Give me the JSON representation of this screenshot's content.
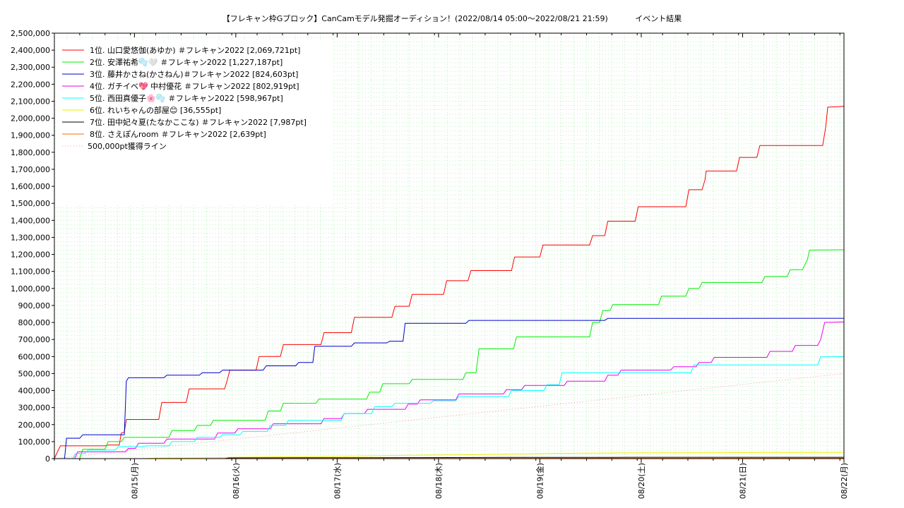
{
  "chart_data": {
    "type": "line",
    "title": "【フレキャン枠Gブロック】CanCamモデル発掘オーディション！(2022/08/14 05:00〜2022/08/21 21:59)           イベント結果",
    "xlabel": "",
    "ylabel": "",
    "ylim": [
      0,
      2500000
    ],
    "grid": true,
    "legend_placement": "top-left",
    "y_ticks": [
      0,
      100000,
      200000,
      300000,
      400000,
      500000,
      600000,
      700000,
      800000,
      900000,
      1000000,
      1100000,
      1200000,
      1300000,
      1400000,
      1500000,
      1600000,
      1700000,
      1800000,
      1900000,
      2000000,
      2100000,
      2200000,
      2300000,
      2400000,
      2500000
    ],
    "y_tick_labels": [
      "0",
      "100,000",
      "200,000",
      "300,000",
      "400,000",
      "500,000",
      "600,000",
      "700,000",
      "800,000",
      "900,000",
      "1,000,000",
      "1,100,000",
      "1,200,000",
      "1,300,000",
      "1,400,000",
      "1,500,000",
      "1,600,000",
      "1,700,000",
      "1,800,000",
      "1,900,000",
      "2,000,000",
      "2,100,000",
      "2,200,000",
      "2,300,000",
      "2,400,000",
      "2,500,000"
    ],
    "x_ticks": [
      0.79,
      1.79,
      2.79,
      3.79,
      4.79,
      5.79,
      6.79,
      7.79
    ],
    "x_tick_labels": [
      "08/15(月)",
      "08/16(火)",
      "08/17(水)",
      "08/18(木)",
      "08/19(金)",
      "08/20(土)",
      "08/21(日)",
      "08/22(月)"
    ],
    "x_range": [
      0,
      7.79
    ],
    "series": [
      {
        "name": "1位. 山口愛悠伽(あゆか) ＃フレキャン2022 [2,069,721pt]",
        "color": "#ff0000",
        "points": [
          [
            0,
            0
          ],
          [
            0.03,
            40000
          ],
          [
            0.06,
            75000
          ],
          [
            0.5,
            75000
          ],
          [
            0.53,
            80000
          ],
          [
            0.64,
            80000
          ],
          [
            0.66,
            150000
          ],
          [
            0.69,
            155000
          ],
          [
            0.71,
            230000
          ],
          [
            1.03,
            230000
          ],
          [
            1.06,
            330000
          ],
          [
            1.3,
            330000
          ],
          [
            1.33,
            410000
          ],
          [
            1.68,
            410000
          ],
          [
            1.71,
            470000
          ],
          [
            1.73,
            520000
          ],
          [
            1.99,
            520000
          ],
          [
            2.02,
            600000
          ],
          [
            2.23,
            600000
          ],
          [
            2.26,
            670000
          ],
          [
            2.63,
            670000
          ],
          [
            2.66,
            740000
          ],
          [
            2.93,
            740000
          ],
          [
            2.96,
            830000
          ],
          [
            3.33,
            830000
          ],
          [
            3.36,
            895000
          ],
          [
            3.5,
            895000
          ],
          [
            3.53,
            965000
          ],
          [
            3.84,
            965000
          ],
          [
            3.87,
            1045000
          ],
          [
            4.08,
            1045000
          ],
          [
            4.11,
            1105000
          ],
          [
            4.51,
            1105000
          ],
          [
            4.54,
            1185000
          ],
          [
            4.79,
            1185000
          ],
          [
            4.82,
            1255000
          ],
          [
            5.28,
            1255000
          ],
          [
            5.31,
            1310000
          ],
          [
            5.43,
            1310000
          ],
          [
            5.46,
            1395000
          ],
          [
            5.73,
            1395000
          ],
          [
            5.76,
            1480000
          ],
          [
            6.23,
            1480000
          ],
          [
            6.26,
            1580000
          ],
          [
            6.39,
            1580000
          ],
          [
            6.42,
            1640000
          ],
          [
            6.43,
            1690000
          ],
          [
            6.73,
            1690000
          ],
          [
            6.76,
            1770000
          ],
          [
            6.93,
            1770000
          ],
          [
            6.96,
            1840000
          ],
          [
            7.58,
            1840000
          ],
          [
            7.61,
            1950000
          ],
          [
            7.63,
            2065000
          ],
          [
            7.79,
            2069721
          ]
        ]
      },
      {
        "name": "2位. 安澤祐希🫧🤍 ＃フレキャン2022 [1,227,187pt]",
        "color": "#00ee00",
        "points": [
          [
            0.25,
            0
          ],
          [
            0.28,
            55000
          ],
          [
            0.5,
            55000
          ],
          [
            0.53,
            100000
          ],
          [
            0.66,
            100000
          ],
          [
            0.69,
            125000
          ],
          [
            1.13,
            125000
          ],
          [
            1.16,
            165000
          ],
          [
            1.38,
            165000
          ],
          [
            1.41,
            195000
          ],
          [
            1.54,
            195000
          ],
          [
            1.57,
            225000
          ],
          [
            2.08,
            225000
          ],
          [
            2.11,
            280000
          ],
          [
            2.23,
            280000
          ],
          [
            2.26,
            325000
          ],
          [
            2.58,
            325000
          ],
          [
            2.61,
            350000
          ],
          [
            3.08,
            350000
          ],
          [
            3.11,
            390000
          ],
          [
            3.21,
            390000
          ],
          [
            3.24,
            440000
          ],
          [
            3.5,
            440000
          ],
          [
            3.53,
            465000
          ],
          [
            4.03,
            465000
          ],
          [
            4.06,
            505000
          ],
          [
            4.16,
            505000
          ],
          [
            4.19,
            645000
          ],
          [
            4.53,
            645000
          ],
          [
            4.56,
            715000
          ],
          [
            5.28,
            715000
          ],
          [
            5.31,
            800000
          ],
          [
            5.38,
            800000
          ],
          [
            5.41,
            870000
          ],
          [
            5.48,
            870000
          ],
          [
            5.51,
            905000
          ],
          [
            5.96,
            905000
          ],
          [
            5.99,
            955000
          ],
          [
            6.23,
            955000
          ],
          [
            6.26,
            1000000
          ],
          [
            6.36,
            1000000
          ],
          [
            6.39,
            1035000
          ],
          [
            6.98,
            1035000
          ],
          [
            7.01,
            1070000
          ],
          [
            7.23,
            1070000
          ],
          [
            7.26,
            1110000
          ],
          [
            7.38,
            1110000
          ],
          [
            7.43,
            1170000
          ],
          [
            7.45,
            1225000
          ],
          [
            7.79,
            1227187
          ]
        ]
      },
      {
        "name": "3位. 藤井かさね(かさねん)＃フレキャン2022 [824,603pt]",
        "color": "#0000cc",
        "points": [
          [
            0.1,
            0
          ],
          [
            0.12,
            120000
          ],
          [
            0.25,
            120000
          ],
          [
            0.28,
            140000
          ],
          [
            0.69,
            140000
          ],
          [
            0.71,
            455000
          ],
          [
            0.73,
            475000
          ],
          [
            1.08,
            475000
          ],
          [
            1.11,
            490000
          ],
          [
            1.43,
            490000
          ],
          [
            1.46,
            505000
          ],
          [
            1.63,
            505000
          ],
          [
            1.66,
            520000
          ],
          [
            2.06,
            520000
          ],
          [
            2.09,
            545000
          ],
          [
            2.38,
            545000
          ],
          [
            2.41,
            565000
          ],
          [
            2.55,
            565000
          ],
          [
            2.57,
            660000
          ],
          [
            2.93,
            660000
          ],
          [
            2.96,
            680000
          ],
          [
            3.28,
            680000
          ],
          [
            3.31,
            690000
          ],
          [
            3.44,
            690000
          ],
          [
            3.46,
            795000
          ],
          [
            4.06,
            795000
          ],
          [
            4.09,
            812000
          ],
          [
            5.43,
            812000
          ],
          [
            5.46,
            824000
          ],
          [
            7.79,
            824603
          ]
        ]
      },
      {
        "name": "4位. ガチイベ💖 中村優花 ＃フレキャン2022 [802,919pt]",
        "color": "#ee00ee",
        "points": [
          [
            0.2,
            0
          ],
          [
            0.23,
            40000
          ],
          [
            0.7,
            40000
          ],
          [
            0.73,
            60000
          ],
          [
            0.8,
            60000
          ],
          [
            0.83,
            90000
          ],
          [
            1.08,
            90000
          ],
          [
            1.11,
            115000
          ],
          [
            1.58,
            115000
          ],
          [
            1.61,
            150000
          ],
          [
            1.78,
            150000
          ],
          [
            1.81,
            175000
          ],
          [
            2.13,
            175000
          ],
          [
            2.16,
            205000
          ],
          [
            2.63,
            205000
          ],
          [
            2.66,
            235000
          ],
          [
            2.83,
            235000
          ],
          [
            2.86,
            265000
          ],
          [
            3.06,
            265000
          ],
          [
            3.09,
            290000
          ],
          [
            3.46,
            290000
          ],
          [
            3.49,
            320000
          ],
          [
            3.58,
            320000
          ],
          [
            3.61,
            345000
          ],
          [
            3.96,
            345000
          ],
          [
            3.99,
            380000
          ],
          [
            4.43,
            380000
          ],
          [
            4.46,
            405000
          ],
          [
            4.61,
            405000
          ],
          [
            4.64,
            430000
          ],
          [
            5.03,
            430000
          ],
          [
            5.06,
            455000
          ],
          [
            5.43,
            455000
          ],
          [
            5.46,
            490000
          ],
          [
            5.56,
            490000
          ],
          [
            5.59,
            520000
          ],
          [
            6.08,
            520000
          ],
          [
            6.11,
            540000
          ],
          [
            6.33,
            540000
          ],
          [
            6.36,
            565000
          ],
          [
            6.48,
            565000
          ],
          [
            6.51,
            595000
          ],
          [
            7.03,
            595000
          ],
          [
            7.06,
            630000
          ],
          [
            7.28,
            630000
          ],
          [
            7.31,
            665000
          ],
          [
            7.53,
            665000
          ],
          [
            7.56,
            700000
          ],
          [
            7.6,
            800000
          ],
          [
            7.79,
            802919
          ]
        ]
      },
      {
        "name": "5位. 西田真優子🌸🫧 ＃フレキャン2022 [598,967pt]",
        "color": "#00ffff",
        "points": [
          [
            0.18,
            0
          ],
          [
            0.21,
            30000
          ],
          [
            0.3,
            30000
          ],
          [
            0.33,
            50000
          ],
          [
            0.6,
            50000
          ],
          [
            0.63,
            70000
          ],
          [
            0.88,
            70000
          ],
          [
            0.91,
            75000
          ],
          [
            1.13,
            75000
          ],
          [
            1.16,
            100000
          ],
          [
            1.38,
            100000
          ],
          [
            1.41,
            125000
          ],
          [
            1.63,
            125000
          ],
          [
            1.66,
            140000
          ],
          [
            1.83,
            140000
          ],
          [
            1.86,
            160000
          ],
          [
            2.1,
            160000
          ],
          [
            2.13,
            195000
          ],
          [
            2.28,
            195000
          ],
          [
            2.31,
            225000
          ],
          [
            2.83,
            225000
          ],
          [
            2.86,
            265000
          ],
          [
            3.13,
            265000
          ],
          [
            3.16,
            305000
          ],
          [
            3.33,
            305000
          ],
          [
            3.36,
            325000
          ],
          [
            3.71,
            325000
          ],
          [
            3.74,
            340000
          ],
          [
            3.96,
            340000
          ],
          [
            3.99,
            365000
          ],
          [
            4.48,
            365000
          ],
          [
            4.51,
            400000
          ],
          [
            4.83,
            400000
          ],
          [
            4.86,
            435000
          ],
          [
            4.98,
            435000
          ],
          [
            5.01,
            505000
          ],
          [
            6.28,
            505000
          ],
          [
            6.31,
            550000
          ],
          [
            7.53,
            550000
          ],
          [
            7.56,
            598000
          ],
          [
            7.79,
            598967
          ]
        ]
      },
      {
        "name": "6位. れいちゃんの部屋😊 [36,555pt]",
        "color": "#eeee00",
        "points": [
          [
            0.9,
            0
          ],
          [
            1.0,
            3000
          ],
          [
            1.5,
            5000
          ],
          [
            2.0,
            9000
          ],
          [
            2.5,
            12000
          ],
          [
            3.0,
            15000
          ],
          [
            3.5,
            20000
          ],
          [
            4.0,
            22000
          ],
          [
            4.5,
            27000
          ],
          [
            5.0,
            31000
          ],
          [
            5.5,
            33000
          ],
          [
            6.0,
            34000
          ],
          [
            6.5,
            35000
          ],
          [
            7.0,
            35500
          ],
          [
            7.5,
            36000
          ],
          [
            7.79,
            36555
          ]
        ]
      },
      {
        "name": "7位. 田中妃々夏(たなかここな) ＃フレキャン2022 [7,987pt]",
        "color": "#000000",
        "points": [
          [
            1.68,
            0
          ],
          [
            1.72,
            4000
          ],
          [
            2.5,
            5000
          ],
          [
            3.5,
            6000
          ],
          [
            4.5,
            7000
          ],
          [
            5.5,
            7500
          ],
          [
            6.5,
            7800
          ],
          [
            7.79,
            7987
          ]
        ]
      },
      {
        "name": "8位. さえぽんroom ＃フレキャン2022 [2,639pt]",
        "color": "#ff6600",
        "points": [
          [
            0.6,
            0
          ],
          [
            2.0,
            800
          ],
          [
            4.0,
            1400
          ],
          [
            6.0,
            2000
          ],
          [
            7.3,
            2300
          ],
          [
            7.79,
            2639
          ]
        ]
      },
      {
        "name": "500,000pt獲得ライン",
        "color": "#ff9999",
        "dashed": true,
        "points": [
          [
            0,
            0
          ],
          [
            7.79,
            500000
          ]
        ]
      }
    ]
  }
}
